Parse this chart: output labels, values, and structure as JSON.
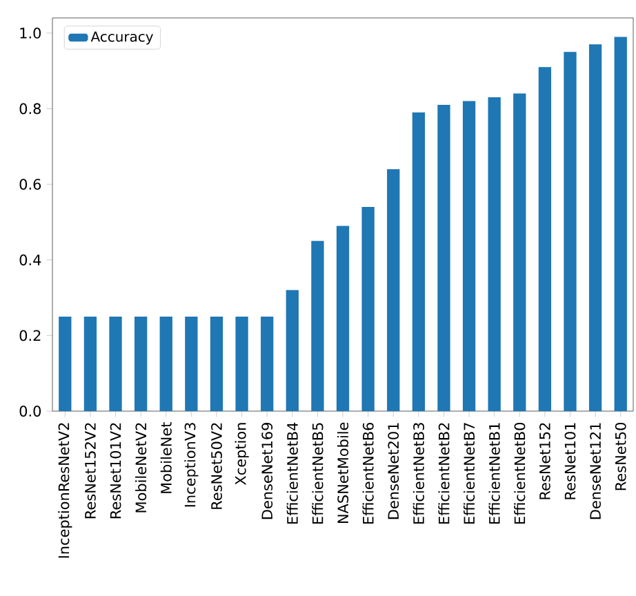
{
  "chart_data": {
    "type": "bar",
    "categories": [
      "InceptionResNetV2",
      "ResNet152V2",
      "ResNet101V2",
      "MobileNetV2",
      "MobileNet",
      "InceptionV3",
      "ResNet50V2",
      "Xception",
      "DenseNet169",
      "EfficientNetB4",
      "EfficientNetB5",
      "NASNetMobile",
      "EfficientNetB6",
      "DenseNet201",
      "EfficientNetB3",
      "EfficientNetB2",
      "EfficientNetB7",
      "EfficientNetB1",
      "EfficientNetB0",
      "ResNet152",
      "ResNet101",
      "DenseNet121",
      "ResNet50"
    ],
    "series": [
      {
        "name": "Accuracy",
        "color": "#1f77b4",
        "values": [
          0.25,
          0.25,
          0.25,
          0.25,
          0.25,
          0.25,
          0.25,
          0.25,
          0.25,
          0.32,
          0.45,
          0.49,
          0.54,
          0.64,
          0.79,
          0.81,
          0.82,
          0.83,
          0.84,
          0.91,
          0.95,
          0.97,
          0.99
        ]
      }
    ],
    "ylim": [
      0,
      1.04
    ],
    "yticks": [
      {
        "value": 0,
        "label": "0.0"
      },
      {
        "value": 0.2,
        "label": "0.2"
      },
      {
        "value": 0.4,
        "label": "0.4"
      },
      {
        "value": 0.6,
        "label": "0.6"
      },
      {
        "value": 0.8,
        "label": "0.8"
      },
      {
        "value": 1.0,
        "label": "1.0"
      }
    ],
    "legend": "top left",
    "grid": false
  }
}
